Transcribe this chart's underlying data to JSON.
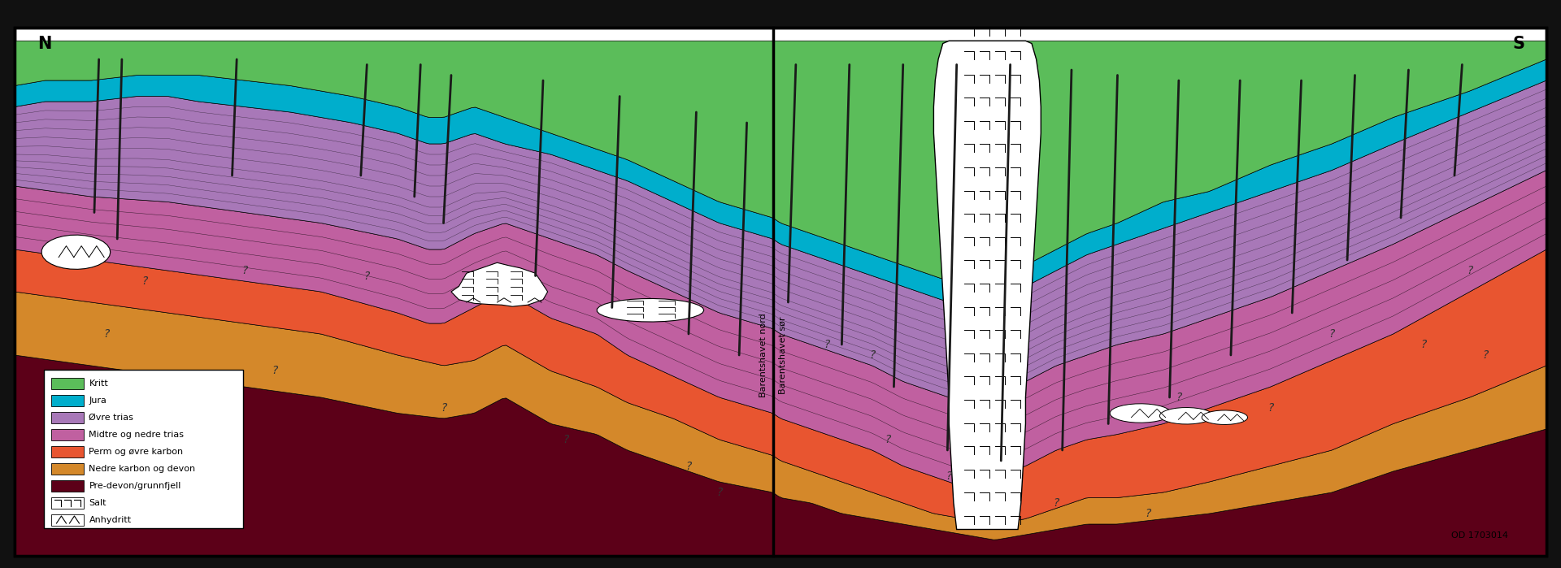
{
  "fig_width": 19.2,
  "fig_height": 6.99,
  "colors": {
    "kritt": "#5BBD5A",
    "jura": "#00AECC",
    "ovre_trias": "#A878B8",
    "midtre_nedre_trias": "#C060A0",
    "perm_ovre_karbon": "#E85530",
    "nedre_karbon_devon": "#D4882A",
    "pre_devon": "#5C0018",
    "salt": "#FFFFFF"
  },
  "legend_items": [
    {
      "label": "Kritt",
      "color": "#5BBD5A",
      "type": "color"
    },
    {
      "label": "Jura",
      "color": "#00AECC",
      "type": "color"
    },
    {
      "label": "Øvre trias",
      "color": "#A878B8",
      "type": "color"
    },
    {
      "label": "Midtre og nedre trias",
      "color": "#C060A0",
      "type": "color"
    },
    {
      "label": "Perm og øvre karbon",
      "color": "#E85530",
      "type": "color"
    },
    {
      "label": "Nedre karbon og devon",
      "color": "#D4882A",
      "type": "color"
    },
    {
      "label": "Pre-devon/grunnfjell",
      "color": "#5C0018",
      "type": "color"
    },
    {
      "label": "Salt",
      "color": "#FFFFFF",
      "type": "salt"
    },
    {
      "label": "Anhydritt",
      "color": "#FFFFFF",
      "type": "anhydritt"
    }
  ]
}
